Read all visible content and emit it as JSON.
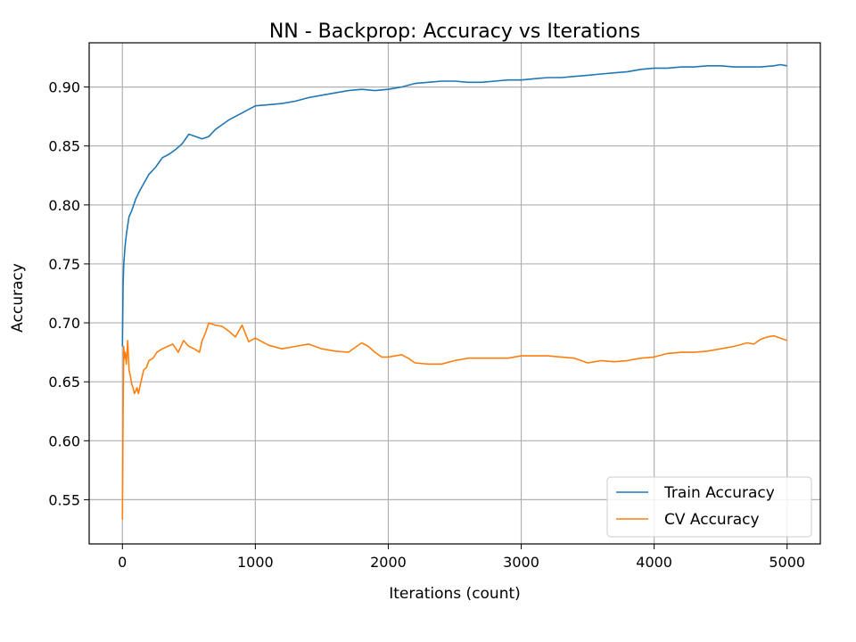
{
  "chart_data": {
    "type": "line",
    "title": "NN - Backprop: Accuracy vs Iterations",
    "xlabel": "Iterations (count)",
    "ylabel": "Accuracy",
    "xlim": [
      -250,
      5250
    ],
    "ylim": [
      0.5125,
      0.9375
    ],
    "xticks": [
      0,
      1000,
      2000,
      3000,
      4000,
      5000
    ],
    "xtick_labels": [
      "0",
      "1000",
      "2000",
      "3000",
      "4000",
      "5000"
    ],
    "yticks": [
      0.55,
      0.6,
      0.65,
      0.7,
      0.75,
      0.8,
      0.85,
      0.9
    ],
    "ytick_labels": [
      "0.55",
      "0.60",
      "0.65",
      "0.70",
      "0.75",
      "0.80",
      "0.85",
      "0.90"
    ],
    "grid": true,
    "legend_position": "bottom-right",
    "series": [
      {
        "name": "Train Accuracy",
        "color": "#1f77b4",
        "x": [
          0,
          5,
          10,
          20,
          30,
          50,
          70,
          100,
          130,
          160,
          200,
          250,
          300,
          350,
          400,
          450,
          500,
          550,
          600,
          650,
          700,
          750,
          800,
          850,
          900,
          950,
          1000,
          1100,
          1200,
          1300,
          1400,
          1500,
          1600,
          1700,
          1800,
          1900,
          2000,
          2100,
          2200,
          2300,
          2400,
          2500,
          2600,
          2700,
          2800,
          2900,
          3000,
          3100,
          3200,
          3300,
          3400,
          3500,
          3600,
          3700,
          3800,
          3900,
          4000,
          4100,
          4200,
          4300,
          4400,
          4500,
          4600,
          4700,
          4800,
          4900,
          4950,
          5000
        ],
        "y": [
          0.68,
          0.73,
          0.75,
          0.765,
          0.775,
          0.79,
          0.795,
          0.805,
          0.812,
          0.818,
          0.826,
          0.832,
          0.84,
          0.843,
          0.847,
          0.852,
          0.86,
          0.858,
          0.856,
          0.858,
          0.864,
          0.868,
          0.872,
          0.875,
          0.878,
          0.881,
          0.884,
          0.885,
          0.886,
          0.888,
          0.891,
          0.893,
          0.895,
          0.897,
          0.898,
          0.897,
          0.898,
          0.9,
          0.903,
          0.904,
          0.905,
          0.905,
          0.904,
          0.904,
          0.905,
          0.906,
          0.906,
          0.907,
          0.908,
          0.908,
          0.909,
          0.91,
          0.911,
          0.912,
          0.913,
          0.915,
          0.916,
          0.916,
          0.917,
          0.917,
          0.918,
          0.918,
          0.917,
          0.917,
          0.917,
          0.918,
          0.919,
          0.918
        ]
      },
      {
        "name": "CV Accuracy",
        "color": "#ff7f0e",
        "x": [
          0,
          5,
          10,
          15,
          20,
          30,
          40,
          50,
          60,
          70,
          80,
          90,
          100,
          110,
          120,
          140,
          160,
          180,
          200,
          230,
          260,
          300,
          340,
          380,
          420,
          460,
          500,
          540,
          580,
          600,
          620,
          650,
          700,
          750,
          800,
          850,
          900,
          950,
          1000,
          1100,
          1200,
          1300,
          1400,
          1500,
          1600,
          1700,
          1800,
          1850,
          1900,
          1950,
          2000,
          2100,
          2150,
          2200,
          2300,
          2400,
          2500,
          2600,
          2700,
          2800,
          2900,
          3000,
          3100,
          3200,
          3300,
          3400,
          3500,
          3600,
          3700,
          3800,
          3900,
          4000,
          4100,
          4200,
          4300,
          4400,
          4500,
          4600,
          4700,
          4750,
          4800,
          4850,
          4900,
          4950,
          5000
        ],
        "y": [
          0.533,
          0.62,
          0.68,
          0.67,
          0.675,
          0.665,
          0.685,
          0.66,
          0.655,
          0.648,
          0.645,
          0.64,
          0.642,
          0.645,
          0.64,
          0.65,
          0.66,
          0.662,
          0.668,
          0.67,
          0.675,
          0.678,
          0.68,
          0.682,
          0.675,
          0.685,
          0.68,
          0.678,
          0.675,
          0.685,
          0.69,
          0.7,
          0.698,
          0.697,
          0.693,
          0.688,
          0.698,
          0.684,
          0.687,
          0.681,
          0.678,
          0.68,
          0.682,
          0.678,
          0.676,
          0.675,
          0.683,
          0.68,
          0.675,
          0.671,
          0.671,
          0.673,
          0.67,
          0.666,
          0.665,
          0.665,
          0.668,
          0.67,
          0.67,
          0.67,
          0.67,
          0.672,
          0.672,
          0.672,
          0.671,
          0.67,
          0.666,
          0.668,
          0.667,
          0.668,
          0.67,
          0.671,
          0.674,
          0.675,
          0.675,
          0.676,
          0.678,
          0.68,
          0.683,
          0.682,
          0.686,
          0.688,
          0.689,
          0.687,
          0.685
        ]
      }
    ]
  }
}
